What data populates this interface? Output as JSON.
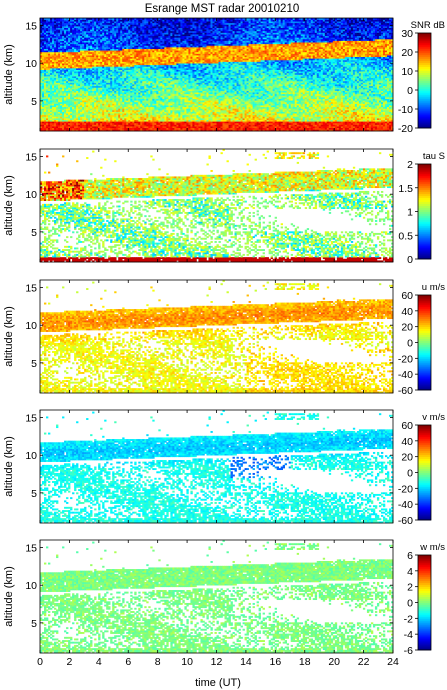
{
  "figure": {
    "title": "Esrange MST radar 20010210",
    "xlabel": "time (UT)"
  },
  "colors": {
    "colormap": [
      "#00007f",
      "#0000ff",
      "#007fff",
      "#00ffff",
      "#7fff7f",
      "#ffff00",
      "#ff7f00",
      "#ff0000",
      "#7f0000"
    ],
    "background": "#ffffff",
    "axis": "#000000"
  },
  "chart_data": [
    {
      "type": "heatmap",
      "panel": "snr",
      "ylabel": "altitude (km)",
      "colorbar_label": "SNR dB",
      "x_range": [
        0,
        24
      ],
      "y_range": [
        1,
        16
      ],
      "x_ticks": [
        0,
        2,
        4,
        6,
        8,
        10,
        12,
        14,
        16,
        18,
        20,
        22,
        24
      ],
      "y_ticks": [
        5,
        10,
        15
      ],
      "clim": [
        -20,
        30
      ],
      "colorbar_ticks": [
        -20,
        -10,
        0,
        10,
        20,
        30
      ],
      "show_x_ticklabels": false
    },
    {
      "type": "heatmap",
      "panel": "tau",
      "ylabel": "altitude (km)",
      "colorbar_label": "tau S",
      "x_range": [
        0,
        24
      ],
      "y_range": [
        1,
        16
      ],
      "x_ticks": [
        0,
        2,
        4,
        6,
        8,
        10,
        12,
        14,
        16,
        18,
        20,
        22,
        24
      ],
      "y_ticks": [
        5,
        10,
        15
      ],
      "clim": [
        0,
        2
      ],
      "colorbar_ticks": [
        0,
        0.5,
        1,
        1.5,
        2
      ],
      "show_x_ticklabels": false
    },
    {
      "type": "heatmap",
      "panel": "u",
      "ylabel": "altitude (km)",
      "colorbar_label": "u m/s",
      "x_range": [
        0,
        24
      ],
      "y_range": [
        1,
        16
      ],
      "x_ticks": [
        0,
        2,
        4,
        6,
        8,
        10,
        12,
        14,
        16,
        18,
        20,
        22,
        24
      ],
      "y_ticks": [
        5,
        10,
        15
      ],
      "clim": [
        -60,
        60
      ],
      "colorbar_ticks": [
        -60,
        -40,
        -20,
        0,
        20,
        40,
        60
      ],
      "show_x_ticklabels": false
    },
    {
      "type": "heatmap",
      "panel": "v",
      "ylabel": "altitude (km)",
      "colorbar_label": "v m/s",
      "x_range": [
        0,
        24
      ],
      "y_range": [
        1,
        16
      ],
      "x_ticks": [
        0,
        2,
        4,
        6,
        8,
        10,
        12,
        14,
        16,
        18,
        20,
        22,
        24
      ],
      "y_ticks": [
        5,
        10,
        15
      ],
      "clim": [
        -60,
        60
      ],
      "colorbar_ticks": [
        -60,
        -40,
        -20,
        0,
        20,
        40,
        60
      ],
      "show_x_ticklabels": false
    },
    {
      "type": "heatmap",
      "panel": "w",
      "ylabel": "altitude (km)",
      "colorbar_label": "w m/s",
      "x_range": [
        0,
        24
      ],
      "y_range": [
        1,
        16
      ],
      "x_ticks": [
        0,
        2,
        4,
        6,
        8,
        10,
        12,
        14,
        16,
        18,
        20,
        22,
        24
      ],
      "y_ticks": [
        5,
        10,
        15
      ],
      "clim": [
        -6,
        6
      ],
      "colorbar_ticks": [
        -6,
        -4,
        -2,
        0,
        2,
        4,
        6
      ],
      "show_x_ticklabels": true
    }
  ]
}
